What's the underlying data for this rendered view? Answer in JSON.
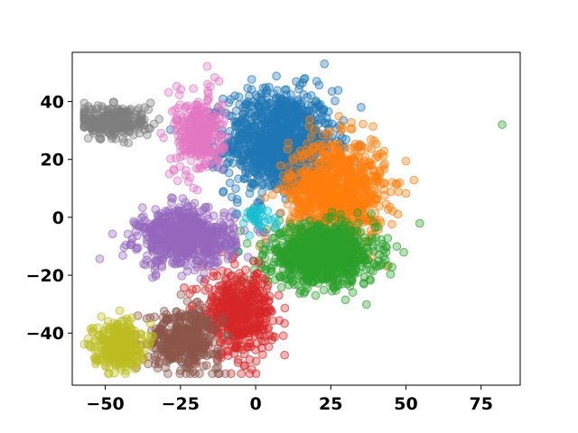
{
  "chart_data": {
    "type": "scatter",
    "title": "",
    "xlabel": "",
    "ylabel": "",
    "xlim": [
      -61,
      88
    ],
    "ylim": [
      -58,
      57
    ],
    "xticks": [
      -50,
      -25,
      0,
      25,
      50,
      75
    ],
    "yticks": [
      -40,
      -20,
      0,
      20,
      40
    ],
    "xtick_labels": [
      "−50",
      "−25",
      "0",
      "25",
      "50",
      "75"
    ],
    "ytick_labels": [
      "−40",
      "−20",
      "0",
      "20",
      "40"
    ],
    "grid": false,
    "legend": "none",
    "series": [
      {
        "color": "#1f77b4",
        "center": [
          8,
          26
        ],
        "spread": [
          9,
          9
        ],
        "count": 1100
      },
      {
        "color": "#ff7f0e",
        "center": [
          27,
          9
        ],
        "spread": [
          8,
          9
        ],
        "count": 900
      },
      {
        "color": "#2ca02c",
        "center": [
          22,
          -13
        ],
        "spread": [
          9,
          5
        ],
        "count": 1000
      },
      {
        "color": "#d62728",
        "center": [
          -6,
          -33
        ],
        "spread": [
          6,
          7
        ],
        "count": 500
      },
      {
        "color": "#9467bd",
        "center": [
          -23,
          -7
        ],
        "spread": [
          8,
          5
        ],
        "count": 650
      },
      {
        "color": "#8c564b",
        "center": [
          -24,
          -42
        ],
        "spread": [
          6,
          5
        ],
        "count": 380
      },
      {
        "color": "#e377c2",
        "center": [
          -19,
          29
        ],
        "spread": [
          4,
          7
        ],
        "count": 300
      },
      {
        "color": "#7f7f7f",
        "center": [
          -47,
          33
        ],
        "spread": [
          6,
          3
        ],
        "count": 260
      },
      {
        "color": "#bcbd22",
        "center": [
          -46,
          -44
        ],
        "spread": [
          4,
          4
        ],
        "count": 320
      },
      {
        "color": "#17becf",
        "center": [
          0,
          0
        ],
        "spread": [
          3,
          2
        ],
        "count": 40
      }
    ],
    "outliers": [
      {
        "x": 82,
        "y": 32,
        "color": "#2ca02c"
      }
    ]
  }
}
